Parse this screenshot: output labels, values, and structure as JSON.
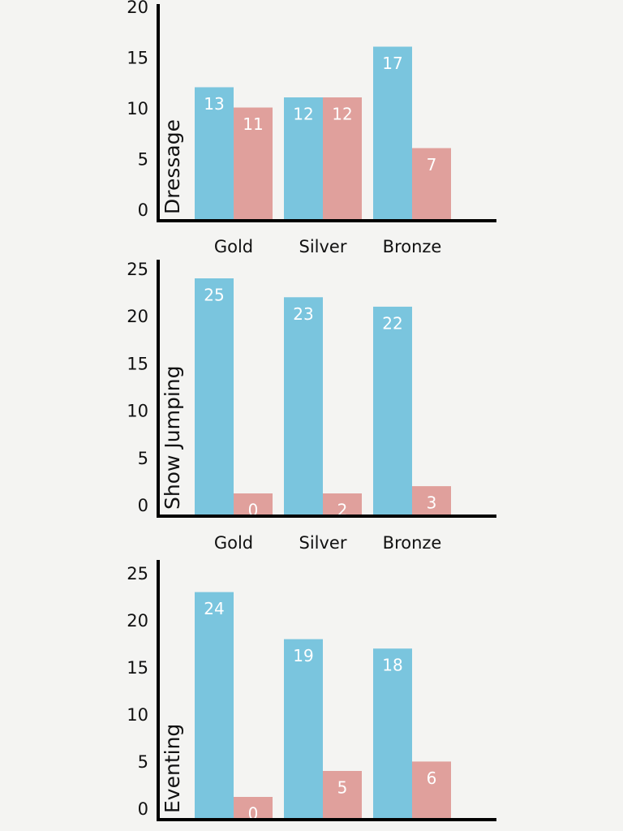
{
  "chart_data": [
    {
      "type": "bar",
      "y_label": "Dressage",
      "categories": [
        "Gold",
        "Silver",
        "Bronze"
      ],
      "series": [
        {
          "color": "#7ac5de",
          "values": [
            13,
            12,
            17
          ]
        },
        {
          "color": "#e0a09c",
          "values": [
            11,
            12,
            7
          ]
        }
      ],
      "ylim": [
        0,
        20
      ],
      "yticks": [
        0,
        5,
        10,
        15,
        20
      ]
    },
    {
      "type": "bar",
      "y_label": "Show Jumping",
      "categories": [
        "Gold",
        "Silver",
        "Bronze"
      ],
      "series": [
        {
          "color": "#7ac5de",
          "values": [
            25,
            23,
            22
          ]
        },
        {
          "color": "#e0a09c",
          "values": [
            0,
            2,
            3
          ]
        }
      ],
      "ylim": [
        0,
        25
      ],
      "yticks": [
        0,
        5,
        10,
        15,
        20,
        25
      ]
    },
    {
      "type": "bar",
      "y_label": "Eventing",
      "categories": [
        null,
        null,
        null
      ],
      "series": [
        {
          "color": "#7ac5de",
          "values": [
            24,
            19,
            18
          ]
        },
        {
          "color": "#e0a09c",
          "values": [
            0,
            5,
            6
          ]
        }
      ],
      "ylim": [
        0,
        25
      ],
      "yticks": [
        0,
        5,
        10,
        15,
        20,
        25
      ]
    }
  ]
}
